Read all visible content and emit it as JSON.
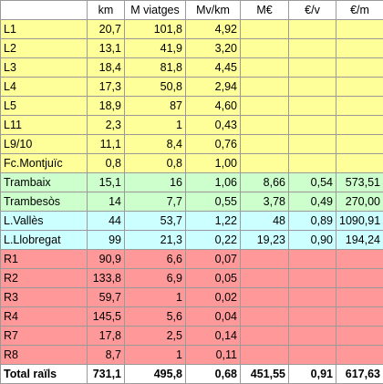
{
  "headers": [
    "",
    "km",
    "M viatges",
    "Mv/km",
    "M€",
    "€/v",
    "€/m"
  ],
  "rows": [
    {
      "label": "L1",
      "km": "20,7",
      "mv": "101,8",
      "mvkm": "4,92",
      "me": "",
      "ev": "",
      "em": "",
      "color": "yellow",
      "bold_mvkm": true
    },
    {
      "label": "L2",
      "km": "13,1",
      "mv": "41,9",
      "mvkm": "3,20",
      "me": "",
      "ev": "",
      "em": "",
      "color": "yellow",
      "bold_mvkm": false
    },
    {
      "label": "L3",
      "km": "18,4",
      "mv": "81,8",
      "mvkm": "4,45",
      "me": "",
      "ev": "",
      "em": "",
      "color": "yellow",
      "bold_mvkm": true
    },
    {
      "label": "L4",
      "km": "17,3",
      "mv": "50,8",
      "mvkm": "2,94",
      "me": "",
      "ev": "",
      "em": "",
      "color": "yellow",
      "bold_mvkm": false
    },
    {
      "label": "L5",
      "km": "18,9",
      "mv": "87",
      "mvkm": "4,60",
      "me": "",
      "ev": "",
      "em": "",
      "color": "yellow",
      "bold_mvkm": true
    },
    {
      "label": "L11",
      "km": "2,3",
      "mv": "1",
      "mvkm": "0,43",
      "me": "",
      "ev": "",
      "em": "",
      "color": "yellow",
      "bold_mvkm": false
    },
    {
      "label": "L9/10",
      "km": "11,1",
      "mv": "8,4",
      "mvkm": "0,76",
      "me": "",
      "ev": "",
      "em": "",
      "color": "yellow",
      "bold_mvkm": false
    },
    {
      "label": "Fc.Montjuïc",
      "km": "0,8",
      "mv": "0,8",
      "mvkm": "1,00",
      "me": "",
      "ev": "",
      "em": "",
      "color": "yellow",
      "bold_mvkm": false
    },
    {
      "label": "Trambaix",
      "km": "15,1",
      "mv": "16",
      "mvkm": "1,06",
      "me": "8,66",
      "ev": "0,54",
      "em": "573,51",
      "color": "green",
      "bold_mvkm": false
    },
    {
      "label": "Trambesòs",
      "km": "14",
      "mv": "7,7",
      "mvkm": "0,55",
      "me": "3,78",
      "ev": "0,49",
      "em": "270,00",
      "color": "green",
      "bold_mvkm": false
    },
    {
      "label": "L.Vallès",
      "km": "44",
      "mv": "53,7",
      "mvkm": "1,22",
      "me": "48",
      "ev": "0,89",
      "em": "1090,91",
      "color": "cyan",
      "bold_mvkm": false
    },
    {
      "label": "L.Llobregat",
      "km": "99",
      "mv": "21,3",
      "mvkm": "0,22",
      "me": "19,23",
      "ev": "0,90",
      "em": "194,24",
      "color": "cyan",
      "bold_mvkm": false
    },
    {
      "label": "R1",
      "km": "90,9",
      "mv": "6,6",
      "mvkm": "0,07",
      "me": "",
      "ev": "",
      "em": "",
      "color": "red",
      "bold_mvkm": false
    },
    {
      "label": "R2",
      "km": "133,8",
      "mv": "6,9",
      "mvkm": "0,05",
      "me": "",
      "ev": "",
      "em": "",
      "color": "red",
      "bold_mvkm": false
    },
    {
      "label": "R3",
      "km": "59,7",
      "mv": "1",
      "mvkm": "0,02",
      "me": "",
      "ev": "",
      "em": "",
      "color": "red",
      "bold_mvkm": false
    },
    {
      "label": "R4",
      "km": "145,5",
      "mv": "5,6",
      "mvkm": "0,04",
      "me": "",
      "ev": "",
      "em": "",
      "color": "red",
      "bold_mvkm": false
    },
    {
      "label": "R7",
      "km": "17,8",
      "mv": "2,5",
      "mvkm": "0,14",
      "me": "",
      "ev": "",
      "em": "",
      "color": "red",
      "bold_mvkm": false
    },
    {
      "label": "R8",
      "km": "8,7",
      "mv": "1",
      "mvkm": "0,11",
      "me": "",
      "ev": "",
      "em": "",
      "color": "red",
      "bold_mvkm": false
    }
  ],
  "total": {
    "label": "Total raïls",
    "km": "731,1",
    "mv": "495,8",
    "mvkm": "0,68",
    "me": "451,55",
    "ev": "0,91",
    "em": "617,63"
  },
  "colors": {
    "yellow": "#ffff99",
    "green": "#ccffcc",
    "cyan": "#ccffff",
    "red": "#ff9999",
    "grid": "#9a9a9a"
  }
}
